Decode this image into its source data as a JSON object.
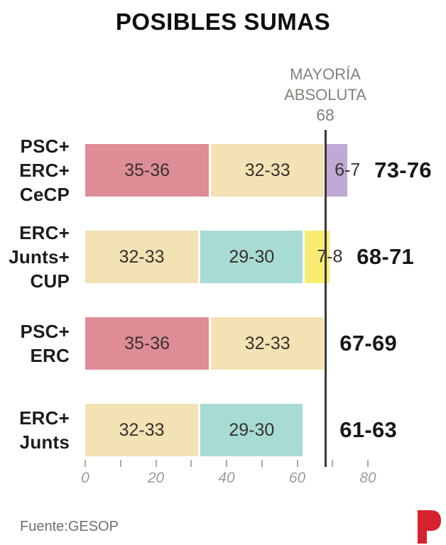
{
  "chart_data": {
    "type": "bar",
    "orientation": "horizontal",
    "stacked": true,
    "title": "POSIBLES SUMAS",
    "majority": {
      "label": "MAYORÍA ABSOLUTA",
      "value": 68,
      "line_color": "#3a3832"
    },
    "rows": [
      {
        "coalition": "PSC+ERC+CeCP",
        "coalition_lines": [
          "PSC+",
          "ERC+",
          "CeCP"
        ],
        "total": "73-76",
        "segments": [
          {
            "party": "PSC",
            "label": "35-36",
            "min": 35,
            "max": 36,
            "color": "#de8c96"
          },
          {
            "party": "ERC",
            "label": "32-33",
            "min": 32,
            "max": 33,
            "color": "#f3e2b4"
          },
          {
            "party": "CeCP",
            "label": "6-7",
            "min": 6,
            "max": 7,
            "color": "#bdaad5"
          }
        ]
      },
      {
        "coalition": "ERC+Junts+CUP",
        "coalition_lines": [
          "ERC+",
          "Junts+",
          "CUP"
        ],
        "total": "68-71",
        "segments": [
          {
            "party": "ERC",
            "label": "32-33",
            "min": 32,
            "max": 33,
            "color": "#f3e2b4"
          },
          {
            "party": "Junts",
            "label": "29-30",
            "min": 29,
            "max": 30,
            "color": "#a7dbd3"
          },
          {
            "party": "CUP",
            "label": "7-8",
            "min": 7,
            "max": 8,
            "color": "#faec73"
          }
        ]
      },
      {
        "coalition": "PSC+ERC",
        "coalition_lines": [
          "PSC+",
          "ERC"
        ],
        "total": "67-69",
        "segments": [
          {
            "party": "PSC",
            "label": "35-36",
            "min": 35,
            "max": 36,
            "color": "#de8c96"
          },
          {
            "party": "ERC",
            "label": "32-33",
            "min": 32,
            "max": 33,
            "color": "#f3e2b4"
          }
        ]
      },
      {
        "coalition": "ERC+Junts",
        "coalition_lines": [
          "ERC+",
          "Junts"
        ],
        "total": "61-63",
        "segments": [
          {
            "party": "ERC",
            "label": "32-33",
            "min": 32,
            "max": 33,
            "color": "#f3e2b4"
          },
          {
            "party": "Junts",
            "label": "29-30",
            "min": 29,
            "max": 30,
            "color": "#a7dbd3"
          }
        ]
      }
    ],
    "x_axis": {
      "ticks": [
        0,
        10,
        20,
        30,
        40,
        50,
        60,
        70,
        80
      ],
      "labeled_ticks": [
        0,
        20,
        40,
        60,
        80
      ],
      "range": [
        0,
        80
      ],
      "style": "italic",
      "grid": false
    },
    "source": "Fuente:GESOP",
    "logo": {
      "letter": "P",
      "color": "#d5222d"
    }
  }
}
